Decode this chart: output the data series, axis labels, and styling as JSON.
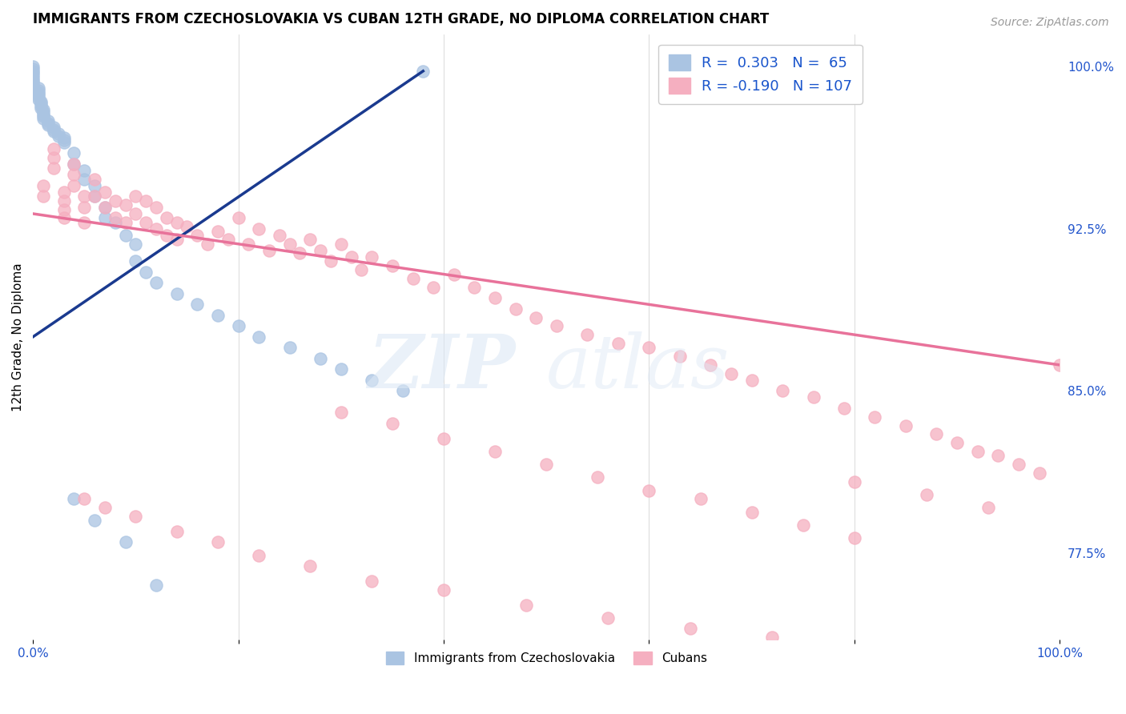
{
  "title": "IMMIGRANTS FROM CZECHOSLOVAKIA VS CUBAN 12TH GRADE, NO DIPLOMA CORRELATION CHART",
  "source": "Source: ZipAtlas.com",
  "ylabel": "12th Grade, No Diploma",
  "xlim": [
    0.0,
    1.0
  ],
  "ylim": [
    0.735,
    1.015
  ],
  "x_tick_positions": [
    0.0,
    0.2,
    0.4,
    0.6,
    0.8,
    1.0
  ],
  "x_tick_labels": [
    "0.0%",
    "",
    "",
    "",
    "",
    "100.0%"
  ],
  "y_tick_values_right": [
    1.0,
    0.925,
    0.85,
    0.775
  ],
  "y_tick_labels_right": [
    "100.0%",
    "92.5%",
    "85.0%",
    "77.5%"
  ],
  "legend_blue_r": "R =  0.303",
  "legend_blue_n": "N =  65",
  "legend_pink_r": "R = -0.190",
  "legend_pink_n": "N = 107",
  "blue_color": "#aac4e2",
  "pink_color": "#f5afc0",
  "blue_line_color": "#1a3a8f",
  "pink_line_color": "#e8729a",
  "legend_text_color": "#1a55cc",
  "blue_line_x": [
    0.0,
    0.38
  ],
  "blue_line_y": [
    0.875,
    0.998
  ],
  "pink_line_x": [
    0.0,
    1.0
  ],
  "pink_line_y": [
    0.932,
    0.862
  ],
  "blue_scatter_x": [
    0.0,
    0.0,
    0.0,
    0.0,
    0.0,
    0.0,
    0.0,
    0.0,
    0.0,
    0.0,
    0.005,
    0.005,
    0.005,
    0.005,
    0.005,
    0.005,
    0.008,
    0.008,
    0.008,
    0.008,
    0.01,
    0.01,
    0.01,
    0.01,
    0.01,
    0.015,
    0.015,
    0.015,
    0.02,
    0.02,
    0.02,
    0.025,
    0.025,
    0.03,
    0.03,
    0.03,
    0.04,
    0.04,
    0.05,
    0.05,
    0.06,
    0.06,
    0.07,
    0.07,
    0.08,
    0.09,
    0.1,
    0.1,
    0.11,
    0.12,
    0.14,
    0.16,
    0.18,
    0.2,
    0.22,
    0.25,
    0.28,
    0.3,
    0.33,
    0.36,
    0.04,
    0.06,
    0.09,
    0.12,
    0.38
  ],
  "blue_scatter_y": [
    1.0,
    0.999,
    0.998,
    0.997,
    0.996,
    0.995,
    0.994,
    0.993,
    0.992,
    0.991,
    0.99,
    0.989,
    0.988,
    0.987,
    0.986,
    0.985,
    0.984,
    0.983,
    0.982,
    0.981,
    0.98,
    0.979,
    0.978,
    0.977,
    0.976,
    0.975,
    0.974,
    0.973,
    0.972,
    0.971,
    0.97,
    0.969,
    0.968,
    0.967,
    0.966,
    0.965,
    0.96,
    0.955,
    0.952,
    0.948,
    0.945,
    0.94,
    0.935,
    0.93,
    0.928,
    0.922,
    0.918,
    0.91,
    0.905,
    0.9,
    0.895,
    0.89,
    0.885,
    0.88,
    0.875,
    0.87,
    0.865,
    0.86,
    0.855,
    0.85,
    0.8,
    0.79,
    0.78,
    0.76,
    0.998
  ],
  "pink_scatter_x": [
    0.01,
    0.01,
    0.02,
    0.02,
    0.02,
    0.03,
    0.03,
    0.03,
    0.03,
    0.04,
    0.04,
    0.04,
    0.05,
    0.05,
    0.05,
    0.06,
    0.06,
    0.07,
    0.07,
    0.08,
    0.08,
    0.09,
    0.09,
    0.1,
    0.1,
    0.11,
    0.11,
    0.12,
    0.12,
    0.13,
    0.13,
    0.14,
    0.14,
    0.15,
    0.16,
    0.17,
    0.18,
    0.19,
    0.2,
    0.21,
    0.22,
    0.23,
    0.24,
    0.25,
    0.26,
    0.27,
    0.28,
    0.29,
    0.3,
    0.31,
    0.32,
    0.33,
    0.35,
    0.37,
    0.39,
    0.41,
    0.43,
    0.45,
    0.47,
    0.49,
    0.51,
    0.54,
    0.57,
    0.6,
    0.63,
    0.66,
    0.68,
    0.7,
    0.73,
    0.76,
    0.79,
    0.82,
    0.85,
    0.88,
    0.9,
    0.92,
    0.94,
    0.96,
    0.98,
    1.0,
    0.05,
    0.07,
    0.1,
    0.14,
    0.18,
    0.22,
    0.27,
    0.33,
    0.4,
    0.48,
    0.56,
    0.64,
    0.72,
    0.8,
    0.87,
    0.93,
    0.3,
    0.35,
    0.4,
    0.45,
    0.5,
    0.55,
    0.6,
    0.65,
    0.7,
    0.75,
    0.8
  ],
  "pink_scatter_y": [
    0.945,
    0.94,
    0.962,
    0.958,
    0.953,
    0.942,
    0.938,
    0.934,
    0.93,
    0.955,
    0.95,
    0.945,
    0.94,
    0.935,
    0.928,
    0.948,
    0.94,
    0.942,
    0.935,
    0.938,
    0.93,
    0.936,
    0.928,
    0.94,
    0.932,
    0.938,
    0.928,
    0.935,
    0.925,
    0.93,
    0.922,
    0.928,
    0.92,
    0.926,
    0.922,
    0.918,
    0.924,
    0.92,
    0.93,
    0.918,
    0.925,
    0.915,
    0.922,
    0.918,
    0.914,
    0.92,
    0.915,
    0.91,
    0.918,
    0.912,
    0.906,
    0.912,
    0.908,
    0.902,
    0.898,
    0.904,
    0.898,
    0.893,
    0.888,
    0.884,
    0.88,
    0.876,
    0.872,
    0.87,
    0.866,
    0.862,
    0.858,
    0.855,
    0.85,
    0.847,
    0.842,
    0.838,
    0.834,
    0.83,
    0.826,
    0.822,
    0.82,
    0.816,
    0.812,
    0.862,
    0.8,
    0.796,
    0.792,
    0.785,
    0.78,
    0.774,
    0.769,
    0.762,
    0.758,
    0.751,
    0.745,
    0.74,
    0.736,
    0.808,
    0.802,
    0.796,
    0.84,
    0.835,
    0.828,
    0.822,
    0.816,
    0.81,
    0.804,
    0.8,
    0.794,
    0.788,
    0.782
  ]
}
